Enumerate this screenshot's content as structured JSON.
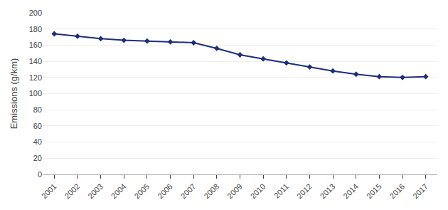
{
  "chart_data": {
    "type": "line",
    "x": [
      2001,
      2002,
      2003,
      2004,
      2005,
      2006,
      2007,
      2008,
      2009,
      2010,
      2011,
      2012,
      2013,
      2014,
      2015,
      2016,
      2017
    ],
    "values": [
      174,
      171,
      168,
      166,
      165,
      164,
      163,
      156,
      148,
      143,
      138,
      133,
      128,
      124,
      121,
      120,
      121
    ],
    "color": "#1F2D7B",
    "marker": "diamond",
    "line_style": "solid",
    "ylabel": "Emissions (g/km)",
    "xlim": [
      2000.5,
      2017.5
    ],
    "xticks": [
      2001,
      2002,
      2003,
      2004,
      2005,
      2006,
      2007,
      2008,
      2009,
      2010,
      2011,
      2012,
      2013,
      2014,
      2015,
      2016,
      2017
    ],
    "ylim": [
      0,
      200
    ],
    "yticks": [
      0,
      20,
      40,
      60,
      80,
      100,
      120,
      140,
      160,
      180,
      200
    ],
    "grid": true
  }
}
